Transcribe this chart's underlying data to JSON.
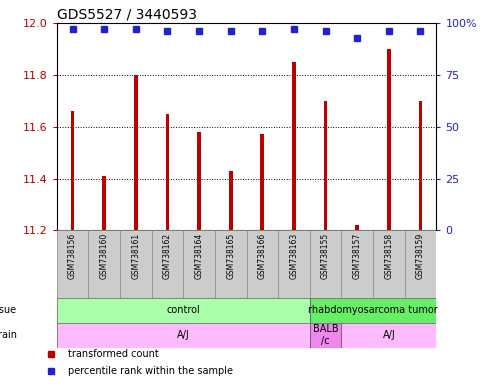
{
  "title": "GDS5527 / 3440593",
  "samples": [
    "GSM738156",
    "GSM738160",
    "GSM738161",
    "GSM738162",
    "GSM738164",
    "GSM738165",
    "GSM738166",
    "GSM738163",
    "GSM738155",
    "GSM738157",
    "GSM738158",
    "GSM738159"
  ],
  "bar_values": [
    11.66,
    11.41,
    11.8,
    11.65,
    11.58,
    11.43,
    11.57,
    11.85,
    11.7,
    11.22,
    11.9,
    11.7
  ],
  "percentile_values": [
    97,
    97,
    97,
    96,
    96,
    96,
    96,
    97,
    96,
    93,
    96,
    96
  ],
  "bar_color": "#bb0000",
  "dot_color": "#2222cc",
  "ylim_left": [
    11.2,
    12.0
  ],
  "ylim_right": [
    0,
    100
  ],
  "yticks_left": [
    11.2,
    11.4,
    11.6,
    11.8,
    12.0
  ],
  "yticks_right": [
    0,
    25,
    50,
    75,
    100
  ],
  "tissue_groups": [
    {
      "label": "control",
      "start": 0,
      "end": 8,
      "color": "#aaffaa"
    },
    {
      "label": "rhabdomyosarcoma tumor",
      "start": 8,
      "end": 12,
      "color": "#66ee66"
    }
  ],
  "strain_groups": [
    {
      "label": "A/J",
      "start": 0,
      "end": 8,
      "color": "#ffbbff"
    },
    {
      "label": "BALB\n/c",
      "start": 8,
      "end": 9,
      "color": "#ee88ee"
    },
    {
      "label": "A/J",
      "start": 9,
      "end": 12,
      "color": "#ffbbff"
    }
  ],
  "legend_items": [
    {
      "color": "#bb0000",
      "label": "transformed count"
    },
    {
      "color": "#2222cc",
      "label": "percentile rank within the sample"
    }
  ],
  "tissue_label": "tissue",
  "strain_label": "strain",
  "bar_width": 0.12,
  "dot_size": 4,
  "background_color": "#ffffff",
  "title_fontsize": 10,
  "tick_fontsize": 8,
  "label_fontsize": 7,
  "sample_fontsize": 5.5,
  "legend_fontsize": 7,
  "grid_color": "#000000",
  "grid_linestyle": ":",
  "grid_linewidth": 0.7
}
